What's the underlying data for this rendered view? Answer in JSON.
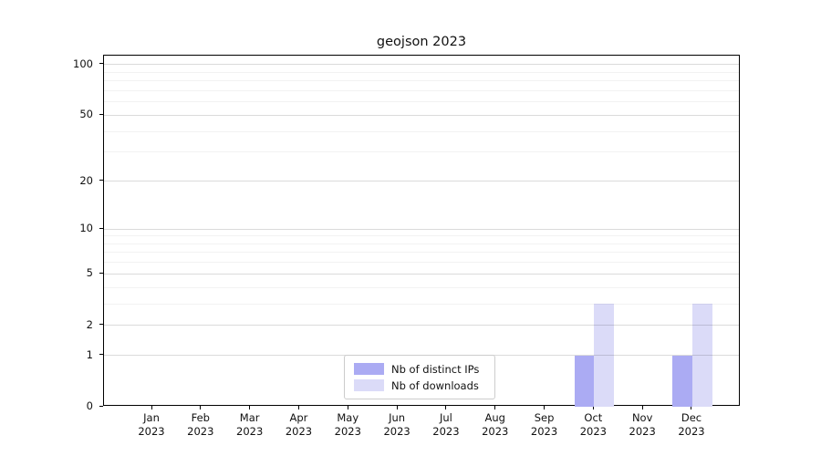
{
  "title": "geojson 2023",
  "chart_data": {
    "type": "bar",
    "title": "geojson 2023",
    "categories": [
      "Jan 2023",
      "Feb 2023",
      "Mar 2023",
      "Apr 2023",
      "May 2023",
      "Jun 2023",
      "Jul 2023",
      "Aug 2023",
      "Sep 2023",
      "Oct 2023",
      "Nov 2023",
      "Dec 2023"
    ],
    "x_tick_months": [
      "Jan",
      "Feb",
      "Mar",
      "Apr",
      "May",
      "Jun",
      "Jul",
      "Aug",
      "Sep",
      "Oct",
      "Nov",
      "Dec"
    ],
    "x_tick_year": "2023",
    "series": [
      {
        "name": "Nb of distinct IPs",
        "color": "#ababf3",
        "values": [
          0,
          0,
          0,
          0,
          0,
          0,
          0,
          0,
          0,
          1,
          0,
          1
        ]
      },
      {
        "name": "Nb of downloads",
        "color": "#dbdbf8",
        "values": [
          0,
          0,
          0,
          0,
          0,
          0,
          0,
          0,
          0,
          3,
          0,
          3
        ]
      }
    ],
    "y_scale": "log1p",
    "y_major_ticks": [
      0,
      1,
      2,
      5,
      10,
      20,
      50,
      100
    ],
    "y_minor_ticks": [
      3,
      4,
      6,
      7,
      8,
      9,
      30,
      40,
      60,
      70,
      80,
      90
    ],
    "ylim": [
      0,
      113
    ],
    "xlabel": "",
    "ylabel": "",
    "grid": "horizontal",
    "legend_position": "lower center"
  },
  "colors": {
    "grid_major": "rgba(0,0,0,0.14)",
    "grid_minor": "rgba(0,0,0,0.05)",
    "axis": "#000000"
  }
}
